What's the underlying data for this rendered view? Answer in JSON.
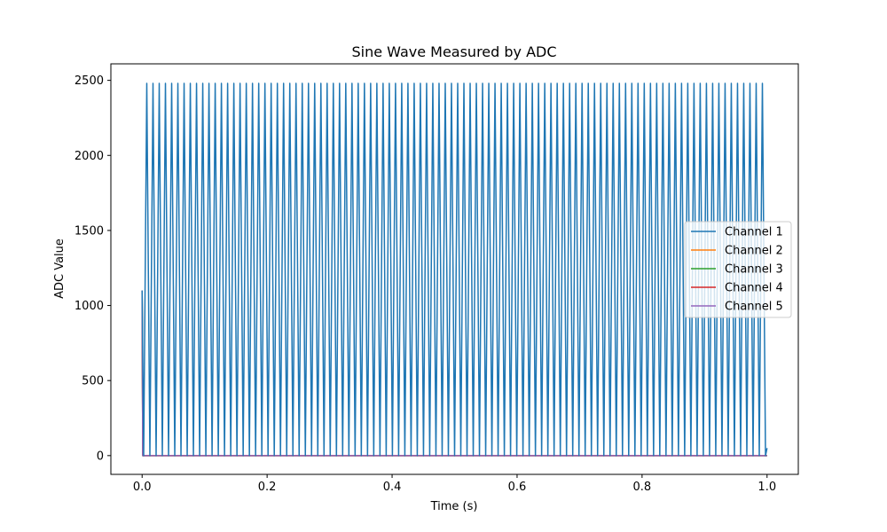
{
  "chart_data": {
    "type": "line",
    "title": "Sine Wave Measured by ADC",
    "xlabel": "Time (s)",
    "ylabel": "ADC Value",
    "xlim": [
      -0.05,
      1.05
    ],
    "ylim": [
      -125,
      2610
    ],
    "xticks": [
      0.0,
      0.2,
      0.4,
      0.6,
      0.8,
      1.0
    ],
    "xtick_labels": [
      "0.0",
      "0.2",
      "0.4",
      "0.6",
      "0.8",
      "1.0"
    ],
    "yticks": [
      0,
      500,
      1000,
      1500,
      2000,
      2500
    ],
    "ytick_labels": [
      "0",
      "500",
      "1000",
      "1500",
      "2000",
      "2500"
    ],
    "grid": false,
    "legend_position": "center-right",
    "series": [
      {
        "name": "Channel 1",
        "color": "#1f77b4",
        "form": "sine",
        "x_range": [
          0.0,
          1.0
        ],
        "cycles": 100,
        "min": 0,
        "max": 2480,
        "start_value": 1100,
        "end_value": 50
      },
      {
        "name": "Channel 2",
        "color": "#ff7f0e",
        "x": [
          0.0,
          0.001,
          1.0
        ],
        "y": [
          1100,
          0,
          0
        ]
      },
      {
        "name": "Channel 3",
        "color": "#2ca02c",
        "x": [
          0.0,
          0.001,
          1.0
        ],
        "y": [
          1100,
          0,
          0
        ]
      },
      {
        "name": "Channel 4",
        "color": "#d62728",
        "x": [
          0.0,
          0.001,
          1.0
        ],
        "y": [
          1100,
          0,
          0
        ]
      },
      {
        "name": "Channel 5",
        "color": "#9467bd",
        "x": [
          0.0,
          0.001,
          1.0
        ],
        "y": [
          1100,
          0,
          0
        ]
      }
    ]
  }
}
